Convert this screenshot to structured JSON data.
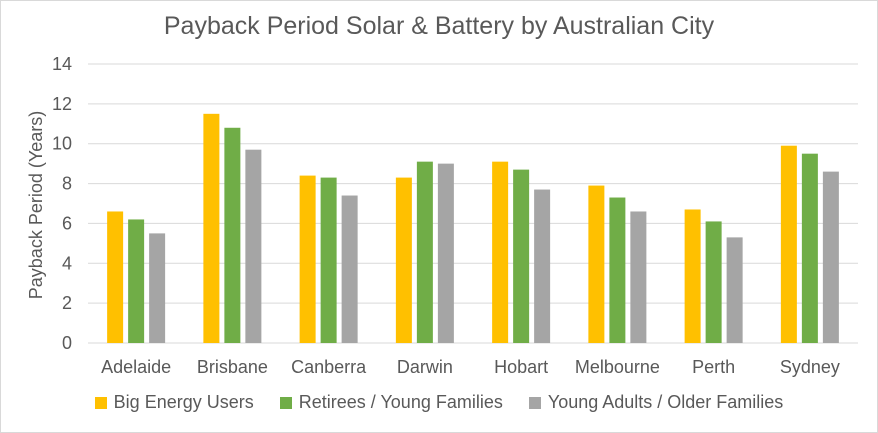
{
  "chart_data": {
    "type": "bar",
    "title": "Payback Period Solar & Battery by Australian City",
    "xlabel": "",
    "ylabel": "Payback Period (Years)",
    "ylim": [
      0,
      14
    ],
    "yticks": [
      0,
      2,
      4,
      6,
      8,
      10,
      12,
      14
    ],
    "grid": true,
    "legend_position": "bottom",
    "categories": [
      "Adelaide",
      "Brisbane",
      "Canberra",
      "Darwin",
      "Hobart",
      "Melbourne",
      "Perth",
      "Sydney"
    ],
    "series": [
      {
        "name": "Big Energy Users",
        "color": "#ffc000",
        "values": [
          6.6,
          11.5,
          8.4,
          8.3,
          9.1,
          7.9,
          6.7,
          9.9
        ]
      },
      {
        "name": "Retirees / Young Families",
        "color": "#70ad47",
        "values": [
          6.2,
          10.8,
          8.3,
          9.1,
          8.7,
          7.3,
          6.1,
          9.5
        ]
      },
      {
        "name": "Young Adults / Older Families",
        "color": "#a5a5a5",
        "values": [
          5.5,
          9.7,
          7.4,
          9.0,
          7.7,
          6.6,
          5.3,
          8.6
        ]
      }
    ]
  }
}
